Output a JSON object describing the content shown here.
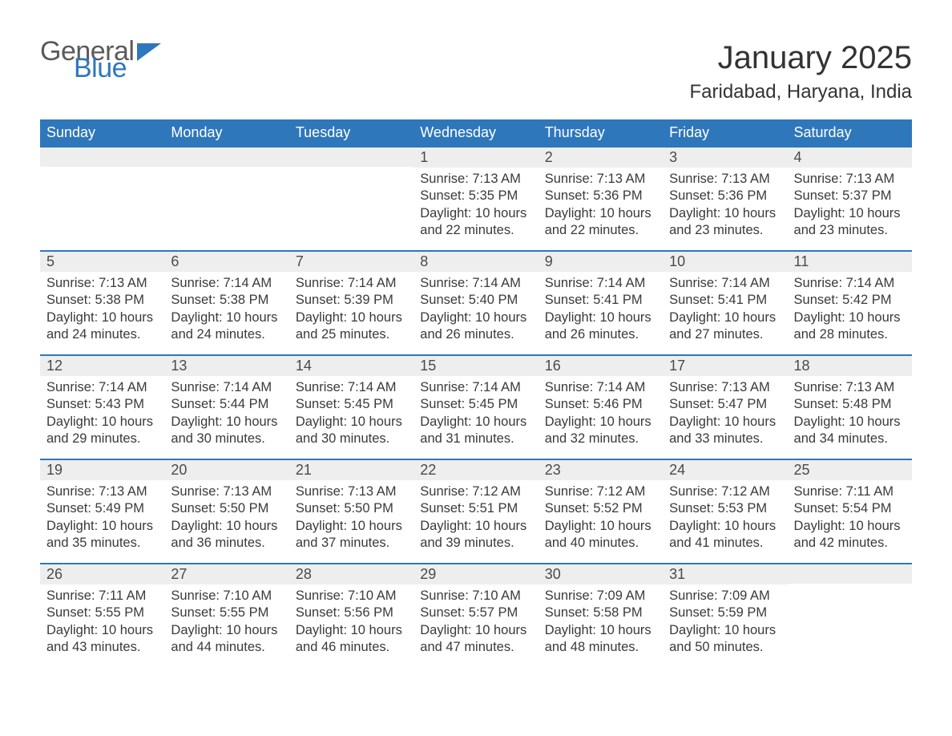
{
  "logo": {
    "word1": "General",
    "word2": "Blue",
    "color1": "#5a5a5a",
    "color2": "#2f77bb"
  },
  "title": "January 2025",
  "location": "Faridabad, Haryana, India",
  "colors": {
    "header_bg": "#2f77bb",
    "header_fg": "#ffffff",
    "daynum_bg": "#eeeeee",
    "border_top": "#2f77bb"
  },
  "dayNames": [
    "Sunday",
    "Monday",
    "Tuesday",
    "Wednesday",
    "Thursday",
    "Friday",
    "Saturday"
  ],
  "weeks": [
    [
      {
        "n": "",
        "sr": "",
        "ss": "",
        "dl": ""
      },
      {
        "n": "",
        "sr": "",
        "ss": "",
        "dl": ""
      },
      {
        "n": "",
        "sr": "",
        "ss": "",
        "dl": ""
      },
      {
        "n": "1",
        "sr": "Sunrise: 7:13 AM",
        "ss": "Sunset: 5:35 PM",
        "dl": "Daylight: 10 hours and 22 minutes."
      },
      {
        "n": "2",
        "sr": "Sunrise: 7:13 AM",
        "ss": "Sunset: 5:36 PM",
        "dl": "Daylight: 10 hours and 22 minutes."
      },
      {
        "n": "3",
        "sr": "Sunrise: 7:13 AM",
        "ss": "Sunset: 5:36 PM",
        "dl": "Daylight: 10 hours and 23 minutes."
      },
      {
        "n": "4",
        "sr": "Sunrise: 7:13 AM",
        "ss": "Sunset: 5:37 PM",
        "dl": "Daylight: 10 hours and 23 minutes."
      }
    ],
    [
      {
        "n": "5",
        "sr": "Sunrise: 7:13 AM",
        "ss": "Sunset: 5:38 PM",
        "dl": "Daylight: 10 hours and 24 minutes."
      },
      {
        "n": "6",
        "sr": "Sunrise: 7:14 AM",
        "ss": "Sunset: 5:38 PM",
        "dl": "Daylight: 10 hours and 24 minutes."
      },
      {
        "n": "7",
        "sr": "Sunrise: 7:14 AM",
        "ss": "Sunset: 5:39 PM",
        "dl": "Daylight: 10 hours and 25 minutes."
      },
      {
        "n": "8",
        "sr": "Sunrise: 7:14 AM",
        "ss": "Sunset: 5:40 PM",
        "dl": "Daylight: 10 hours and 26 minutes."
      },
      {
        "n": "9",
        "sr": "Sunrise: 7:14 AM",
        "ss": "Sunset: 5:41 PM",
        "dl": "Daylight: 10 hours and 26 minutes."
      },
      {
        "n": "10",
        "sr": "Sunrise: 7:14 AM",
        "ss": "Sunset: 5:41 PM",
        "dl": "Daylight: 10 hours and 27 minutes."
      },
      {
        "n": "11",
        "sr": "Sunrise: 7:14 AM",
        "ss": "Sunset: 5:42 PM",
        "dl": "Daylight: 10 hours and 28 minutes."
      }
    ],
    [
      {
        "n": "12",
        "sr": "Sunrise: 7:14 AM",
        "ss": "Sunset: 5:43 PM",
        "dl": "Daylight: 10 hours and 29 minutes."
      },
      {
        "n": "13",
        "sr": "Sunrise: 7:14 AM",
        "ss": "Sunset: 5:44 PM",
        "dl": "Daylight: 10 hours and 30 minutes."
      },
      {
        "n": "14",
        "sr": "Sunrise: 7:14 AM",
        "ss": "Sunset: 5:45 PM",
        "dl": "Daylight: 10 hours and 30 minutes."
      },
      {
        "n": "15",
        "sr": "Sunrise: 7:14 AM",
        "ss": "Sunset: 5:45 PM",
        "dl": "Daylight: 10 hours and 31 minutes."
      },
      {
        "n": "16",
        "sr": "Sunrise: 7:14 AM",
        "ss": "Sunset: 5:46 PM",
        "dl": "Daylight: 10 hours and 32 minutes."
      },
      {
        "n": "17",
        "sr": "Sunrise: 7:13 AM",
        "ss": "Sunset: 5:47 PM",
        "dl": "Daylight: 10 hours and 33 minutes."
      },
      {
        "n": "18",
        "sr": "Sunrise: 7:13 AM",
        "ss": "Sunset: 5:48 PM",
        "dl": "Daylight: 10 hours and 34 minutes."
      }
    ],
    [
      {
        "n": "19",
        "sr": "Sunrise: 7:13 AM",
        "ss": "Sunset: 5:49 PM",
        "dl": "Daylight: 10 hours and 35 minutes."
      },
      {
        "n": "20",
        "sr": "Sunrise: 7:13 AM",
        "ss": "Sunset: 5:50 PM",
        "dl": "Daylight: 10 hours and 36 minutes."
      },
      {
        "n": "21",
        "sr": "Sunrise: 7:13 AM",
        "ss": "Sunset: 5:50 PM",
        "dl": "Daylight: 10 hours and 37 minutes."
      },
      {
        "n": "22",
        "sr": "Sunrise: 7:12 AM",
        "ss": "Sunset: 5:51 PM",
        "dl": "Daylight: 10 hours and 39 minutes."
      },
      {
        "n": "23",
        "sr": "Sunrise: 7:12 AM",
        "ss": "Sunset: 5:52 PM",
        "dl": "Daylight: 10 hours and 40 minutes."
      },
      {
        "n": "24",
        "sr": "Sunrise: 7:12 AM",
        "ss": "Sunset: 5:53 PM",
        "dl": "Daylight: 10 hours and 41 minutes."
      },
      {
        "n": "25",
        "sr": "Sunrise: 7:11 AM",
        "ss": "Sunset: 5:54 PM",
        "dl": "Daylight: 10 hours and 42 minutes."
      }
    ],
    [
      {
        "n": "26",
        "sr": "Sunrise: 7:11 AM",
        "ss": "Sunset: 5:55 PM",
        "dl": "Daylight: 10 hours and 43 minutes."
      },
      {
        "n": "27",
        "sr": "Sunrise: 7:10 AM",
        "ss": "Sunset: 5:55 PM",
        "dl": "Daylight: 10 hours and 44 minutes."
      },
      {
        "n": "28",
        "sr": "Sunrise: 7:10 AM",
        "ss": "Sunset: 5:56 PM",
        "dl": "Daylight: 10 hours and 46 minutes."
      },
      {
        "n": "29",
        "sr": "Sunrise: 7:10 AM",
        "ss": "Sunset: 5:57 PM",
        "dl": "Daylight: 10 hours and 47 minutes."
      },
      {
        "n": "30",
        "sr": "Sunrise: 7:09 AM",
        "ss": "Sunset: 5:58 PM",
        "dl": "Daylight: 10 hours and 48 minutes."
      },
      {
        "n": "31",
        "sr": "Sunrise: 7:09 AM",
        "ss": "Sunset: 5:59 PM",
        "dl": "Daylight: 10 hours and 50 minutes."
      },
      {
        "n": "",
        "sr": "",
        "ss": "",
        "dl": ""
      }
    ]
  ]
}
